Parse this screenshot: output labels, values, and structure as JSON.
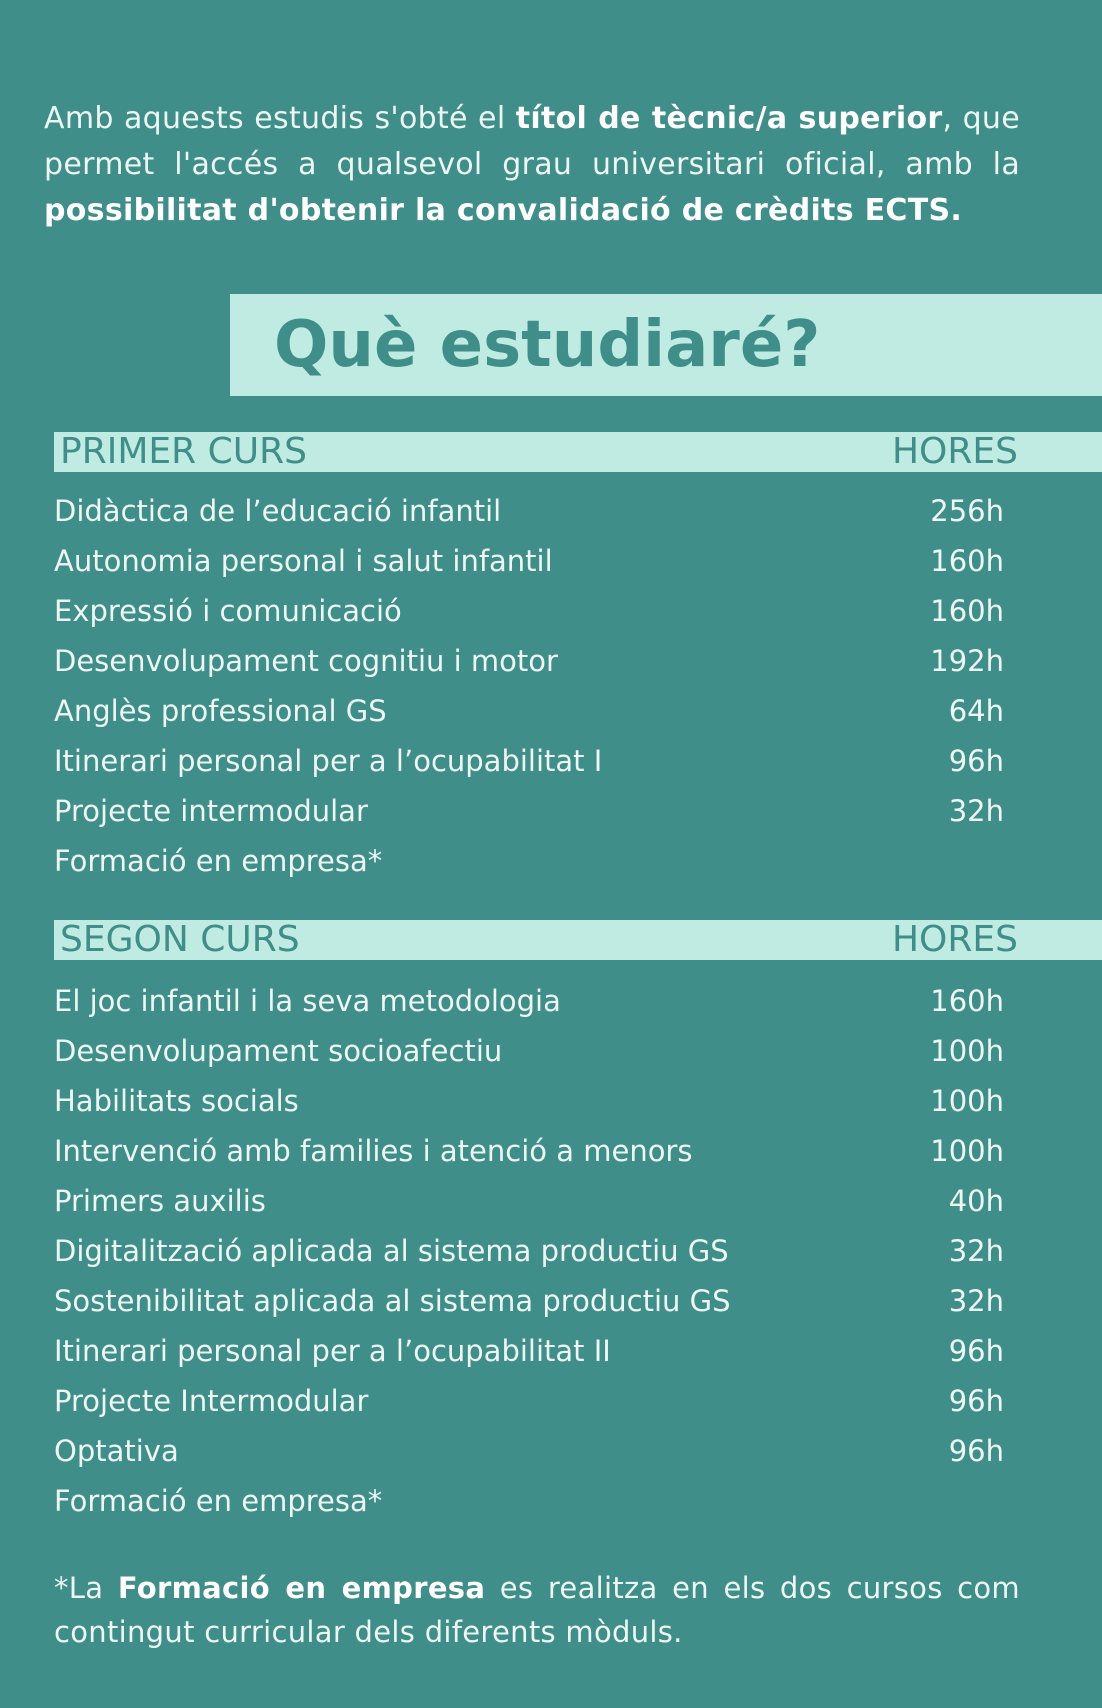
{
  "intro": {
    "part1": "Amb aquests estudis s'obté el ",
    "bold1": "títol de tècnic/a superior",
    "part2": ", que permet l'accés a qualsevol grau universitari oficial, amb la ",
    "bold2": "possibilitat d'obtenir la convalidació de crèdits ECTS."
  },
  "heading": "Què estudiaré?",
  "first_year": {
    "label": "PRIMER CURS",
    "hours_label": "HORES",
    "modules": [
      {
        "name": "Didàctica de l’educació infantil",
        "hours": "256h"
      },
      {
        "name": "Autonomia personal i salut infantil",
        "hours": "160h"
      },
      {
        "name": "Expressió i comunicació",
        "hours": "160h"
      },
      {
        "name": "Desenvolupament cognitiu i motor",
        "hours": "192h"
      },
      {
        "name": "Anglès professional GS",
        "hours": "64h"
      },
      {
        "name": "Itinerari personal per a l’ocupabilitat I",
        "hours": "96h"
      },
      {
        "name": "Projecte intermodular",
        "hours": "32h"
      },
      {
        "name": "Formació en empresa*",
        "hours": ""
      }
    ]
  },
  "second_year": {
    "label": "SEGON CURS",
    "hours_label": "HORES",
    "modules": [
      {
        "name": "El joc infantil i la seva metodologia",
        "hours": "160h"
      },
      {
        "name": "Desenvolupament socioafectiu",
        "hours": "100h"
      },
      {
        "name": "Habilitats socials",
        "hours": "100h"
      },
      {
        "name": "Intervenció amb families i atenció a menors",
        "hours": "100h"
      },
      {
        "name": "Primers auxilis",
        "hours": "40h"
      },
      {
        "name": "Digitalització aplicada al sistema productiu GS",
        "hours": "32h"
      },
      {
        "name": "Sostenibilitat aplicada al sistema productiu GS",
        "hours": "32h"
      },
      {
        "name": "Itinerari personal per a l’ocupabilitat II",
        "hours": "96h"
      },
      {
        "name": "Projecte Intermodular",
        "hours": "96h"
      },
      {
        "name": "Optativa",
        "hours": "96h"
      },
      {
        "name": "Formació en empresa*",
        "hours": ""
      }
    ]
  },
  "footnote": {
    "part1": "*La ",
    "bold": "Formació en empresa",
    "part2": " es realitza en els dos cursos com contingut curricular dels diferents mòduls."
  },
  "colors": {
    "background": "#3f8e89",
    "band": "#c0ebe2",
    "text": "#ecf6f3"
  }
}
